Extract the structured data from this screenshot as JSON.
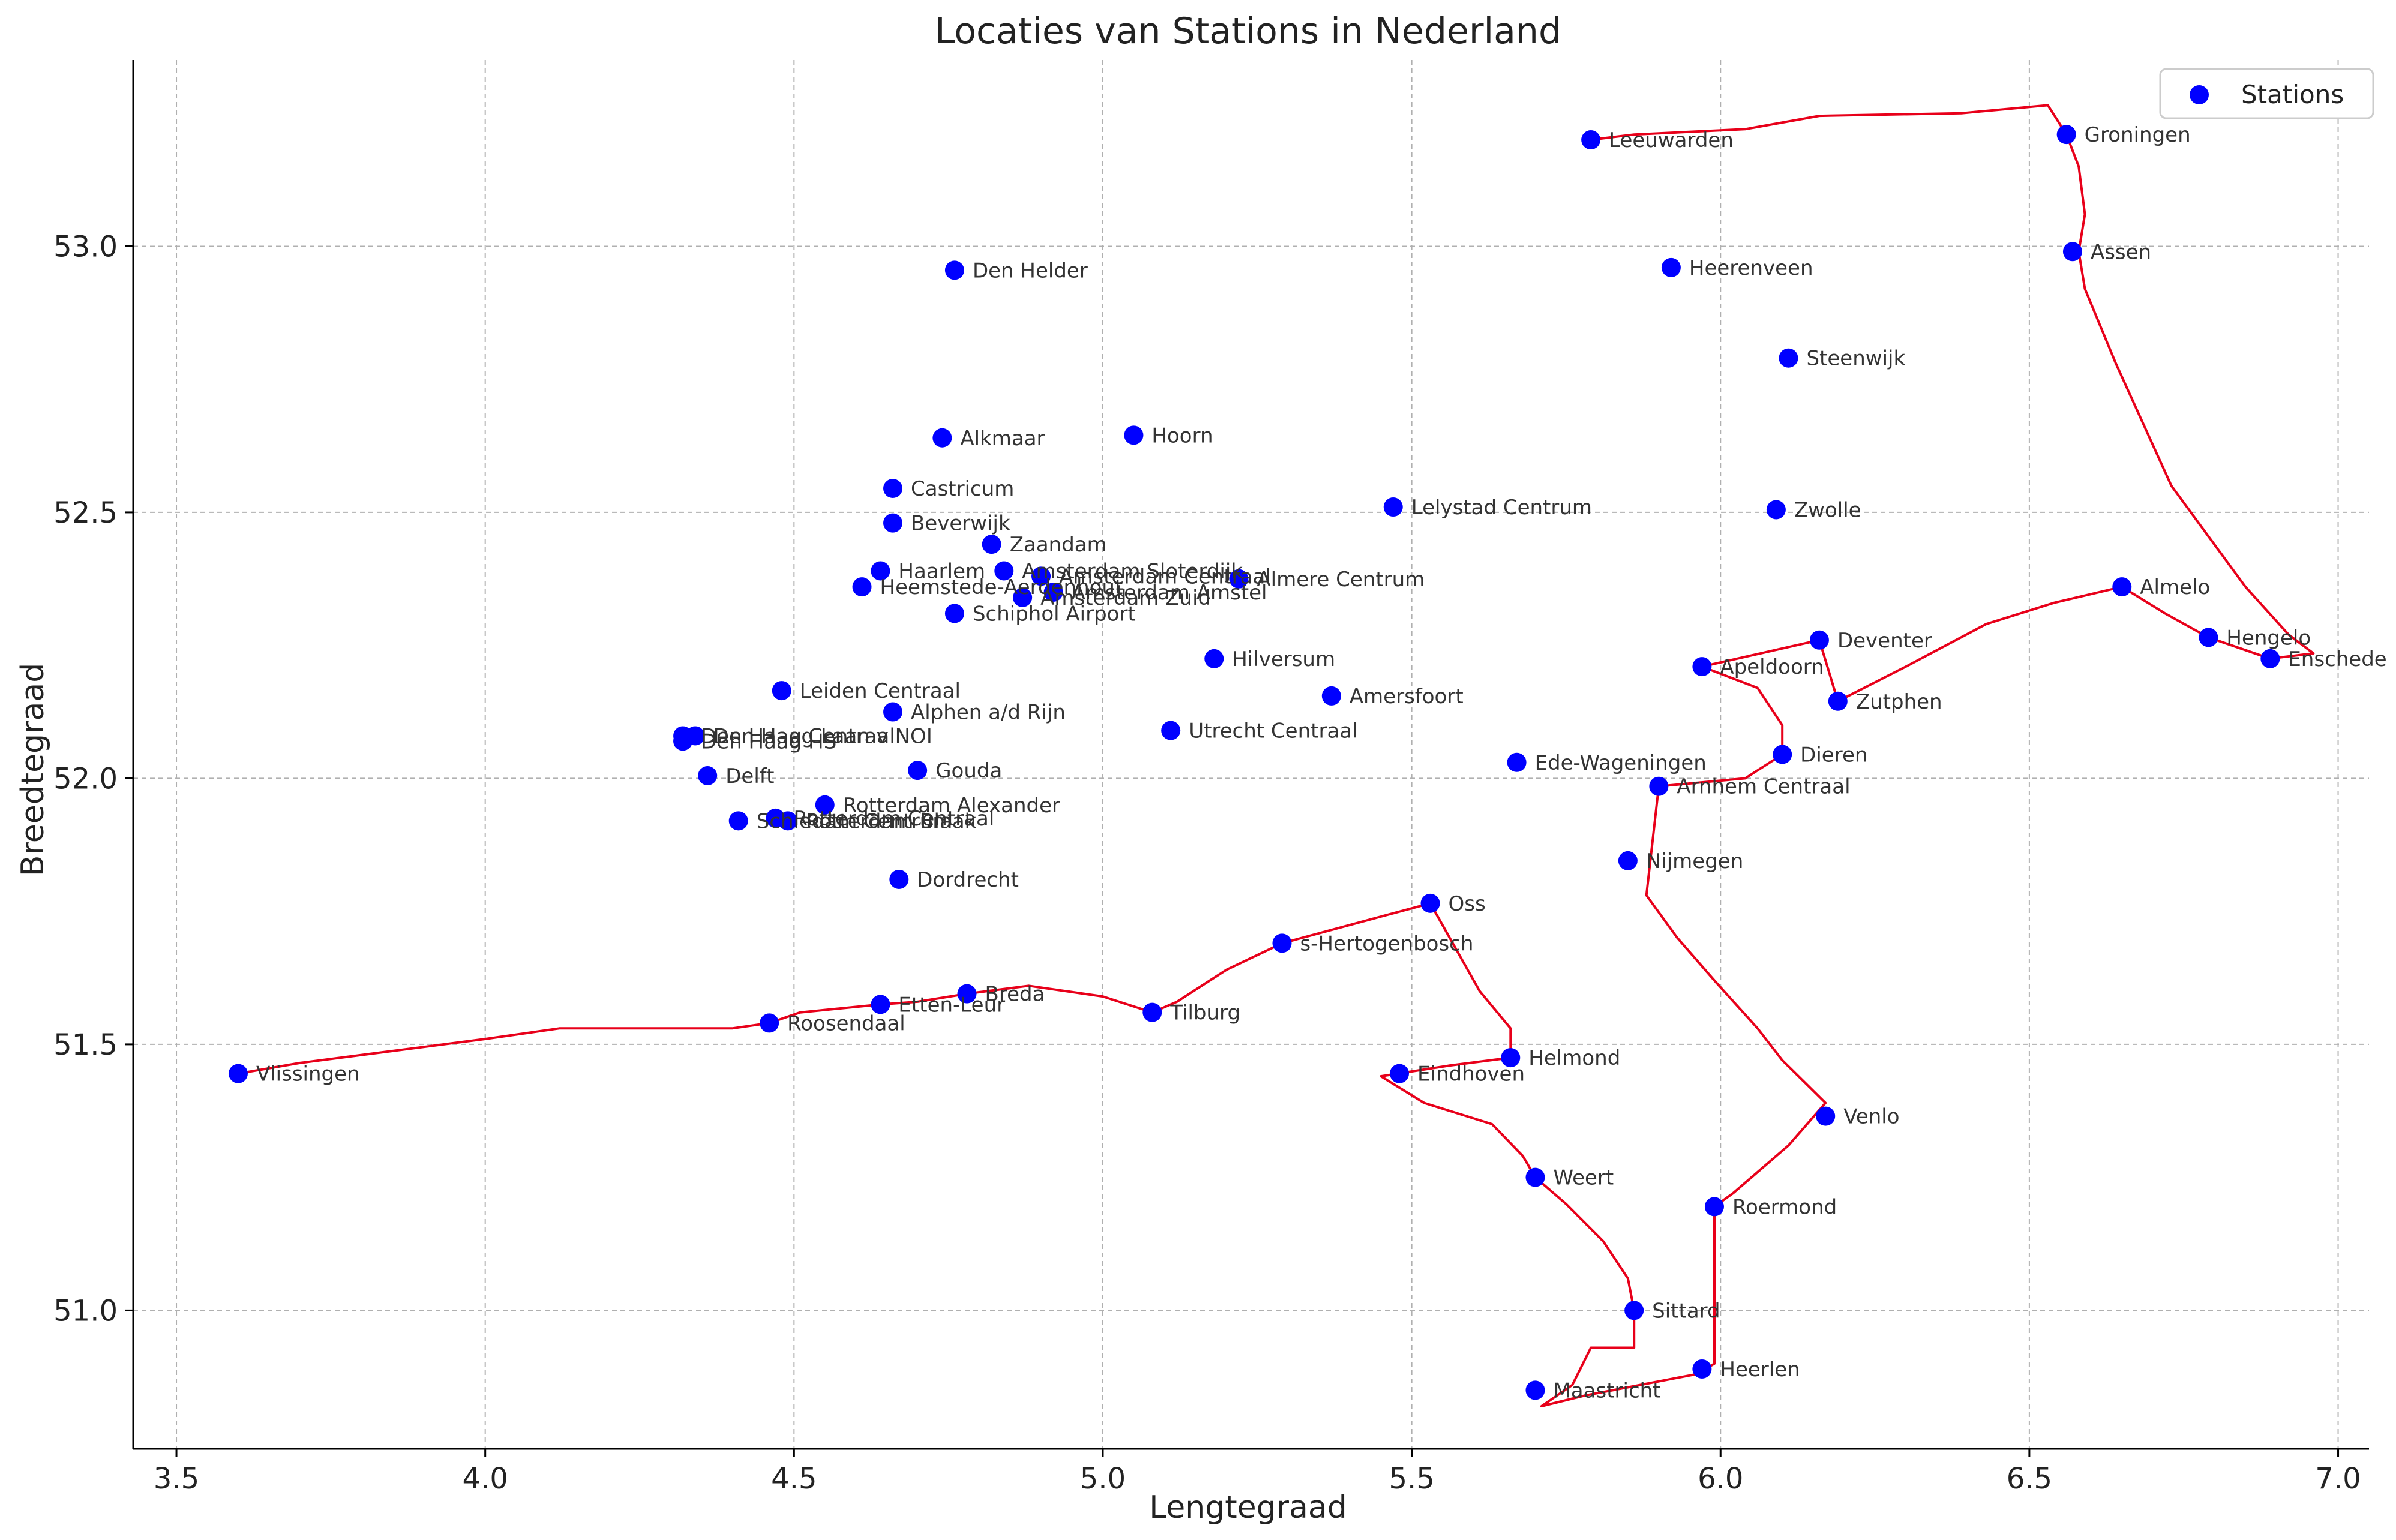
{
  "chart_data": {
    "type": "scatter",
    "title": "Locaties van Stations in Nederland",
    "xlabel": "Lengtegraad",
    "ylabel": "Breedtegraad",
    "xlim": [
      3.43,
      7.05
    ],
    "ylim": [
      50.74,
      53.35
    ],
    "xticks": [
      "3.5",
      "4.0",
      "4.5",
      "5.0",
      "5.5",
      "6.0",
      "6.5",
      "7.0"
    ],
    "yticks": [
      "51.0",
      "51.5",
      "52.0",
      "52.5",
      "53.0"
    ],
    "grid": true,
    "legend": {
      "position": "top-right",
      "entries": [
        "Stations"
      ]
    },
    "colors": {
      "points": "#0000ff",
      "route": "#e8001a",
      "grid": "#b0b0b0"
    },
    "points": [
      {
        "name": "Leeuwarden",
        "lon": 5.79,
        "lat": 53.2
      },
      {
        "name": "Groningen",
        "lon": 6.56,
        "lat": 53.21
      },
      {
        "name": "Assen",
        "lon": 6.57,
        "lat": 52.99
      },
      {
        "name": "Heerenveen",
        "lon": 5.92,
        "lat": 52.96
      },
      {
        "name": "Steenwijk",
        "lon": 6.11,
        "lat": 52.79
      },
      {
        "name": "Den Helder",
        "lon": 4.76,
        "lat": 52.955
      },
      {
        "name": "Alkmaar",
        "lon": 4.74,
        "lat": 52.64
      },
      {
        "name": "Hoorn",
        "lon": 5.05,
        "lat": 52.645
      },
      {
        "name": "Castricum",
        "lon": 4.66,
        "lat": 52.545
      },
      {
        "name": "Beverwijk",
        "lon": 4.66,
        "lat": 52.48
      },
      {
        "name": "Zaandam",
        "lon": 4.82,
        "lat": 52.44
      },
      {
        "name": "Haarlem",
        "lon": 4.64,
        "lat": 52.39
      },
      {
        "name": "Heemstede-Aerdenhout",
        "lon": 4.61,
        "lat": 52.36
      },
      {
        "name": "Amsterdam Sloterdijk",
        "lon": 4.84,
        "lat": 52.39
      },
      {
        "name": "Amsterdam Centraal",
        "lon": 4.9,
        "lat": 52.38
      },
      {
        "name": "Amsterdam Amstel",
        "lon": 4.92,
        "lat": 52.35
      },
      {
        "name": "Amsterdam Zuid",
        "lon": 4.87,
        "lat": 52.34
      },
      {
        "name": "Schiphol Airport",
        "lon": 4.76,
        "lat": 52.31
      },
      {
        "name": "Almere Centrum",
        "lon": 5.22,
        "lat": 52.375
      },
      {
        "name": "Lelystad Centrum",
        "lon": 5.47,
        "lat": 52.51
      },
      {
        "name": "Zwolle",
        "lon": 6.09,
        "lat": 52.505
      },
      {
        "name": "Almelo",
        "lon": 6.65,
        "lat": 52.36
      },
      {
        "name": "Hengelo",
        "lon": 6.79,
        "lat": 52.265
      },
      {
        "name": "Enschede",
        "lon": 6.89,
        "lat": 52.225
      },
      {
        "name": "Deventer",
        "lon": 6.16,
        "lat": 52.26
      },
      {
        "name": "Apeldoorn",
        "lon": 5.97,
        "lat": 52.21
      },
      {
        "name": "Zutphen",
        "lon": 6.19,
        "lat": 52.145
      },
      {
        "name": "Hilversum",
        "lon": 5.18,
        "lat": 52.225
      },
      {
        "name": "Amersfoort",
        "lon": 5.37,
        "lat": 52.155
      },
      {
        "name": "Leiden Centraal",
        "lon": 4.48,
        "lat": 52.165
      },
      {
        "name": "Alphen a/d Rijn",
        "lon": 4.66,
        "lat": 52.125
      },
      {
        "name": "Utrecht Centraal",
        "lon": 5.11,
        "lat": 52.09
      },
      {
        "name": "Den Haag Centraal",
        "lon": 4.32,
        "lat": 52.08
      },
      {
        "name": "Den Haag HS",
        "lon": 4.32,
        "lat": 52.07
      },
      {
        "name": "Den Haag Laan v NOI",
        "lon": 4.34,
        "lat": 52.08
      },
      {
        "name": "Delft",
        "lon": 4.36,
        "lat": 52.005
      },
      {
        "name": "Gouda",
        "lon": 4.7,
        "lat": 52.015
      },
      {
        "name": "Ede-Wageningen",
        "lon": 5.67,
        "lat": 52.03
      },
      {
        "name": "Dieren",
        "lon": 6.1,
        "lat": 52.045
      },
      {
        "name": "Arnhem Centraal",
        "lon": 5.9,
        "lat": 51.985
      },
      {
        "name": "Rotterdam Alexander",
        "lon": 4.55,
        "lat": 51.95
      },
      {
        "name": "Rotterdam Centraal",
        "lon": 4.47,
        "lat": 51.925
      },
      {
        "name": "Rotterdam Blaak",
        "lon": 4.49,
        "lat": 51.92
      },
      {
        "name": "Schiedam Centrum",
        "lon": 4.41,
        "lat": 51.92
      },
      {
        "name": "Dordrecht",
        "lon": 4.67,
        "lat": 51.81
      },
      {
        "name": "Nijmegen",
        "lon": 5.85,
        "lat": 51.845
      },
      {
        "name": "Oss",
        "lon": 5.53,
        "lat": 51.765
      },
      {
        "name": "s-Hertogenbosch",
        "lon": 5.29,
        "lat": 51.69
      },
      {
        "name": "Breda",
        "lon": 4.78,
        "lat": 51.595
      },
      {
        "name": "Etten-Leur",
        "lon": 4.64,
        "lat": 51.575
      },
      {
        "name": "Tilburg",
        "lon": 5.08,
        "lat": 51.56
      },
      {
        "name": "Roosendaal",
        "lon": 4.46,
        "lat": 51.54
      },
      {
        "name": "Helmond",
        "lon": 5.66,
        "lat": 51.475
      },
      {
        "name": "Eindhoven",
        "lon": 5.48,
        "lat": 51.445
      },
      {
        "name": "Vlissingen",
        "lon": 3.6,
        "lat": 51.445
      },
      {
        "name": "Venlo",
        "lon": 6.17,
        "lat": 51.365
      },
      {
        "name": "Weert",
        "lon": 5.7,
        "lat": 51.25
      },
      {
        "name": "Roermond",
        "lon": 5.99,
        "lat": 51.195
      },
      {
        "name": "Sittard",
        "lon": 5.86,
        "lat": 51.0
      },
      {
        "name": "Heerlen",
        "lon": 5.97,
        "lat": 50.89
      },
      {
        "name": "Maastricht",
        "lon": 5.7,
        "lat": 50.85
      }
    ],
    "route": [
      [
        5.79,
        53.2
      ],
      [
        5.86,
        53.21
      ],
      [
        6.04,
        53.22
      ],
      [
        6.16,
        53.245
      ],
      [
        6.39,
        53.25
      ],
      [
        6.53,
        53.265
      ],
      [
        6.56,
        53.21
      ],
      [
        6.58,
        53.15
      ],
      [
        6.59,
        53.06
      ],
      [
        6.58,
        52.99
      ],
      [
        6.59,
        52.92
      ],
      [
        6.64,
        52.78
      ],
      [
        6.73,
        52.55
      ],
      [
        6.85,
        52.36
      ],
      [
        6.92,
        52.27
      ],
      [
        6.96,
        52.235
      ],
      [
        6.89,
        52.225
      ],
      [
        6.79,
        52.265
      ],
      [
        6.72,
        52.31
      ],
      [
        6.65,
        52.36
      ],
      [
        6.54,
        52.33
      ],
      [
        6.43,
        52.29
      ],
      [
        6.3,
        52.21
      ],
      [
        6.19,
        52.145
      ],
      [
        6.16,
        52.26
      ],
      [
        5.97,
        52.21
      ],
      [
        6.06,
        52.17
      ],
      [
        6.1,
        52.1
      ],
      [
        6.1,
        52.045
      ],
      [
        6.04,
        52.0
      ],
      [
        5.9,
        51.985
      ],
      [
        5.88,
        51.78
      ],
      [
        5.93,
        51.7
      ],
      [
        5.99,
        51.62
      ],
      [
        6.06,
        51.53
      ],
      [
        6.1,
        51.47
      ],
      [
        6.17,
        51.39
      ],
      [
        6.11,
        51.31
      ],
      [
        6.02,
        51.22
      ],
      [
        5.99,
        51.195
      ],
      [
        5.99,
        51.04
      ],
      [
        5.99,
        50.9
      ],
      [
        5.96,
        50.88
      ],
      [
        5.78,
        50.84
      ],
      [
        5.71,
        50.82
      ],
      [
        5.76,
        50.86
      ],
      [
        5.79,
        50.93
      ],
      [
        5.86,
        50.93
      ],
      [
        5.86,
        51.0
      ],
      [
        5.85,
        51.06
      ],
      [
        5.81,
        51.13
      ],
      [
        5.75,
        51.2
      ],
      [
        5.7,
        51.25
      ],
      [
        5.68,
        51.29
      ],
      [
        5.63,
        51.35
      ],
      [
        5.52,
        51.39
      ],
      [
        5.45,
        51.44
      ],
      [
        5.56,
        51.46
      ],
      [
        5.66,
        51.475
      ],
      [
        5.66,
        51.53
      ],
      [
        5.61,
        51.6
      ],
      [
        5.53,
        51.765
      ],
      [
        5.45,
        51.74
      ],
      [
        5.29,
        51.69
      ],
      [
        5.2,
        51.64
      ],
      [
        5.12,
        51.58
      ],
      [
        5.08,
        51.56
      ],
      [
        5.0,
        51.59
      ],
      [
        4.88,
        51.61
      ],
      [
        4.78,
        51.595
      ],
      [
        4.7,
        51.58
      ],
      [
        4.64,
        51.575
      ],
      [
        4.51,
        51.56
      ],
      [
        4.46,
        51.54
      ],
      [
        4.4,
        51.53
      ],
      [
        4.12,
        51.53
      ],
      [
        4.0,
        51.51
      ],
      [
        3.9,
        51.495
      ],
      [
        3.7,
        51.465
      ],
      [
        3.6,
        51.445
      ]
    ]
  }
}
